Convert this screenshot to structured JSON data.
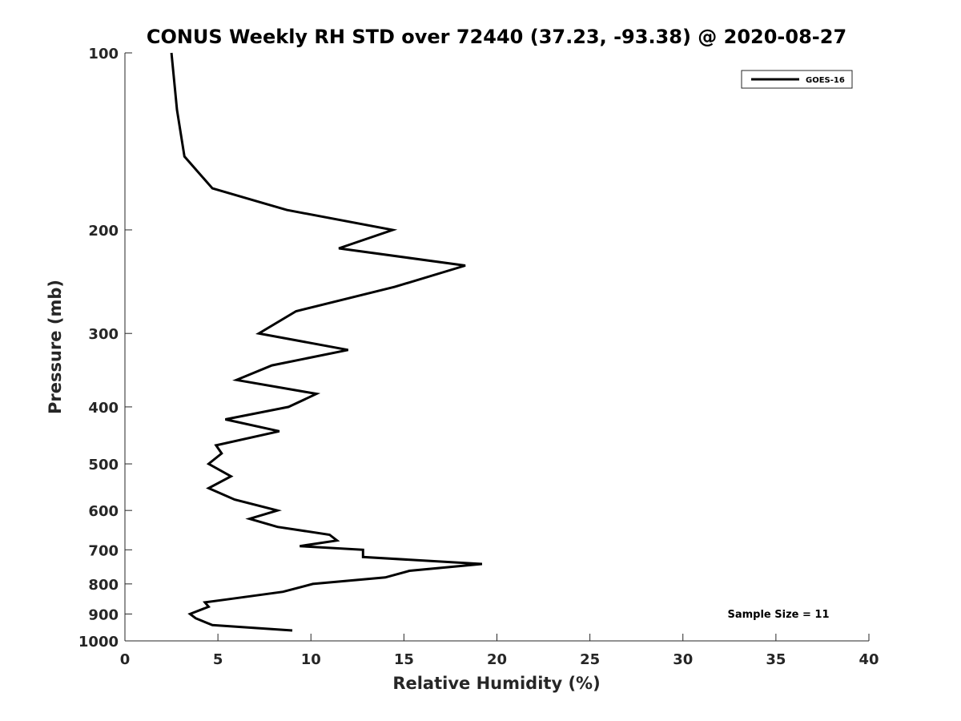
{
  "chart_data": {
    "type": "line",
    "title": "CONUS Weekly RH STD over 72440 (37.23, -93.38) @ 2020-08-27",
    "xlabel": "Relative Humidity (%)",
    "ylabel": "Pressure (mb)",
    "xlim": [
      0,
      40
    ],
    "ylim": [
      100,
      1000
    ],
    "yscale": "log",
    "y_reversed": true,
    "x_ticks": [
      "0",
      "5",
      "10",
      "15",
      "20",
      "25",
      "30",
      "35",
      "40"
    ],
    "y_ticks": [
      "100",
      "200",
      "300",
      "400",
      "500",
      "600",
      "700",
      "800",
      "900",
      "1000"
    ],
    "grid": false,
    "legend_position": "top-right",
    "series": [
      {
        "name": "GOES-16",
        "color": "#000000",
        "points": [
          [
            2.5,
            100
          ],
          [
            2.8,
            125
          ],
          [
            3.2,
            150
          ],
          [
            4.7,
            170
          ],
          [
            8.7,
            185
          ],
          [
            14.4,
            200
          ],
          [
            11.5,
            215
          ],
          [
            18.3,
            230
          ],
          [
            14.5,
            250
          ],
          [
            9.2,
            275
          ],
          [
            7.2,
            300
          ],
          [
            12.0,
            320
          ],
          [
            7.9,
            340
          ],
          [
            6.0,
            360
          ],
          [
            10.3,
            380
          ],
          [
            8.8,
            400
          ],
          [
            5.4,
            420
          ],
          [
            8.3,
            440
          ],
          [
            4.9,
            465
          ],
          [
            5.2,
            480
          ],
          [
            4.5,
            500
          ],
          [
            5.7,
            525
          ],
          [
            4.5,
            550
          ],
          [
            5.9,
            575
          ],
          [
            8.2,
            600
          ],
          [
            6.7,
            620
          ],
          [
            8.2,
            640
          ],
          [
            11.0,
            660
          ],
          [
            11.4,
            675
          ],
          [
            9.4,
            690
          ],
          [
            12.8,
            700
          ],
          [
            12.8,
            720
          ],
          [
            19.2,
            740
          ],
          [
            15.3,
            760
          ],
          [
            14.0,
            780
          ],
          [
            10.1,
            800
          ],
          [
            8.5,
            825
          ],
          [
            5.5,
            850
          ],
          [
            4.3,
            860
          ],
          [
            4.5,
            875
          ],
          [
            3.5,
            900
          ],
          [
            3.8,
            915
          ],
          [
            4.7,
            940
          ],
          [
            9.0,
            960
          ]
        ]
      }
    ],
    "annotation": "Sample Size = 11"
  }
}
